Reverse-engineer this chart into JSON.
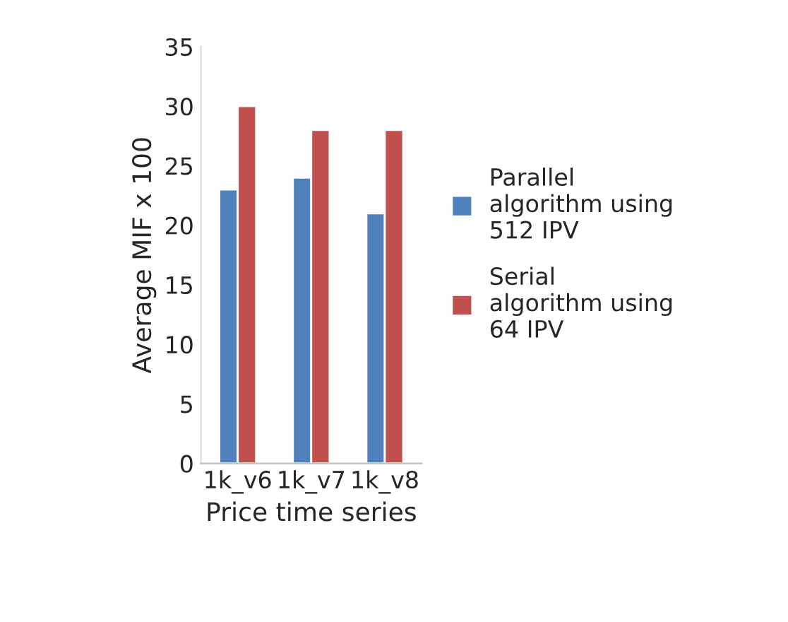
{
  "chart_data": {
    "type": "bar",
    "xlabel": "Price time series",
    "ylabel": "Average MIF x 100",
    "categories": [
      "1k_v6",
      "1k_v7",
      "1k_v8"
    ],
    "series": [
      {
        "name": "Parallel\nalgorithm using\n512 IPV",
        "color": "#4f81bd",
        "values": [
          23,
          24,
          21
        ]
      },
      {
        "name": "Serial\nalgorithm using\n64 IPV",
        "color": "#c0504d",
        "values": [
          30,
          28,
          28
        ]
      }
    ],
    "ylim": [
      0,
      35
    ],
    "yticks": [
      0,
      5,
      10,
      15,
      20,
      25,
      30,
      35
    ],
    "grid": false,
    "legend": "right"
  }
}
